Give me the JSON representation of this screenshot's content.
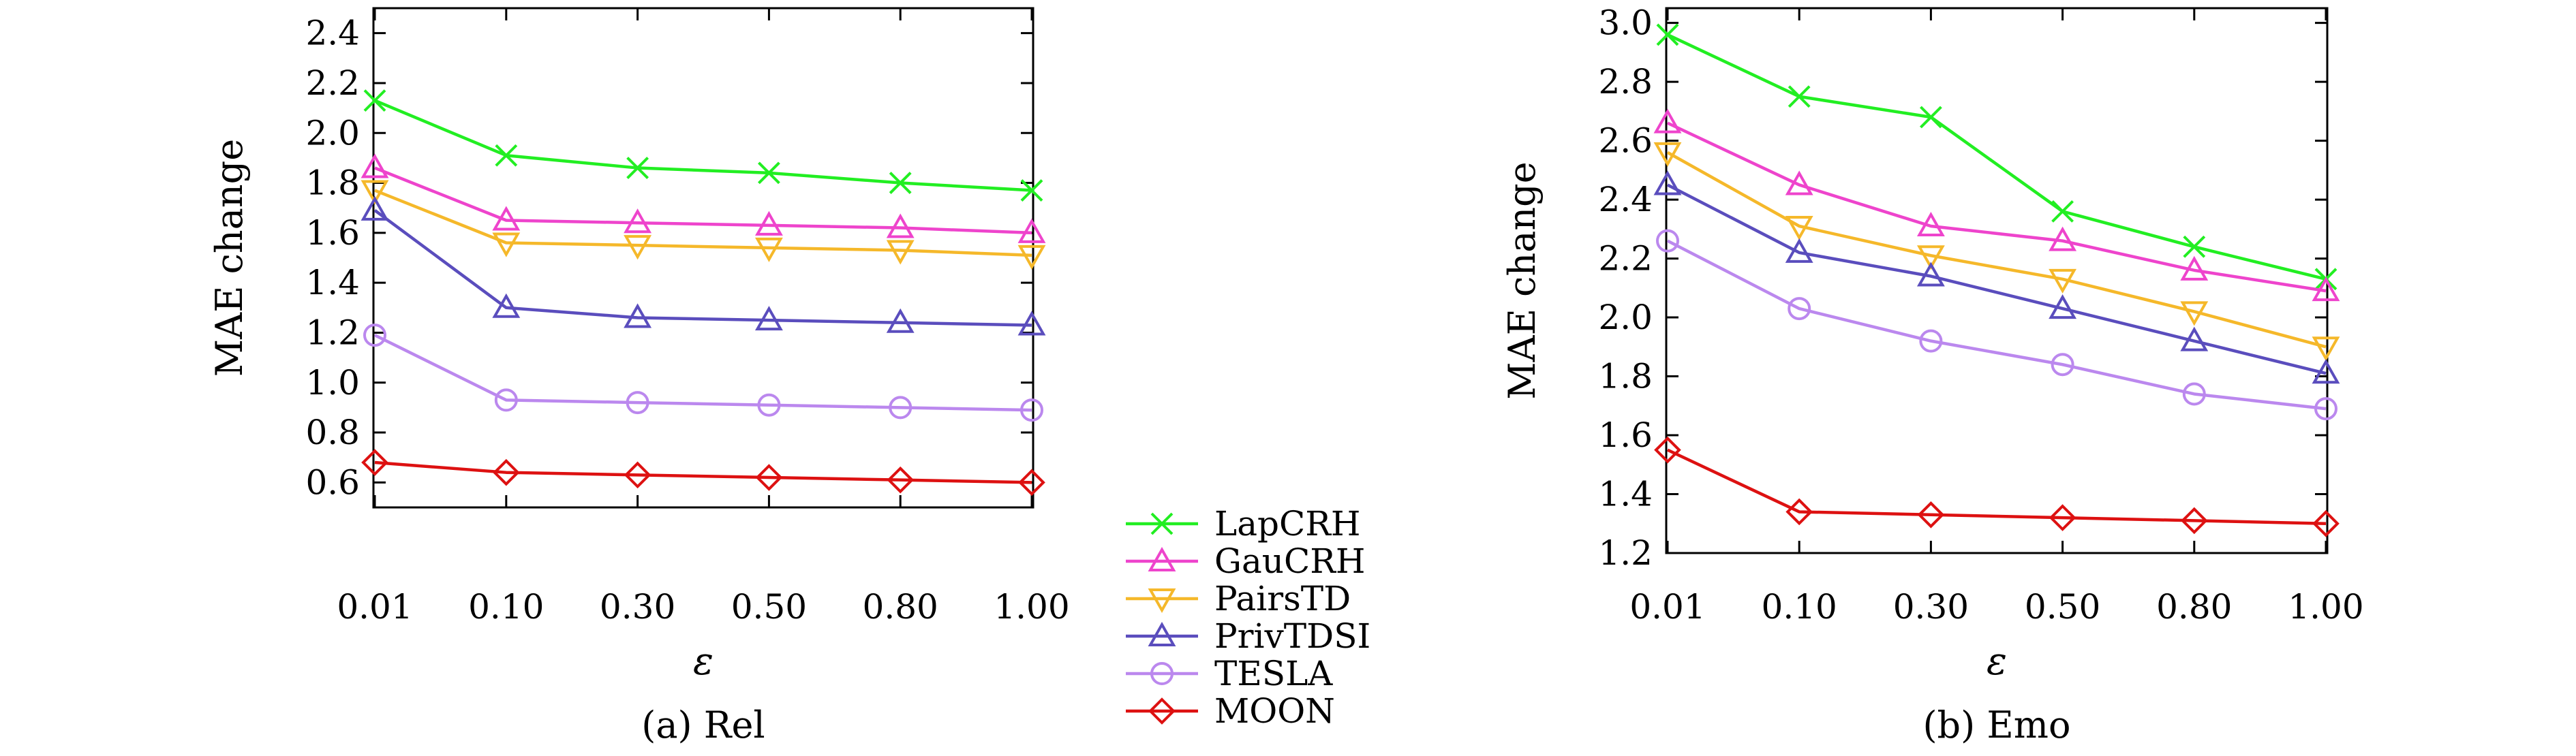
{
  "chart_data": [
    {
      "type": "line",
      "caption": "(a) Rel",
      "xlabel": "ε",
      "ylabel": "MAE change",
      "categories": [
        "0.01",
        "0.10",
        "0.30",
        "0.50",
        "0.80",
        "1.00"
      ],
      "yticks": [
        "0.6",
        "0.8",
        "1.0",
        "1.2",
        "1.4",
        "1.6",
        "1.8",
        "2.0",
        "2.2",
        "2.4"
      ],
      "ylim": [
        0.5,
        2.5
      ],
      "grid": false,
      "series": [
        {
          "name": "LapCRH",
          "values": [
            2.13,
            1.91,
            1.86,
            1.84,
            1.8,
            1.77
          ]
        },
        {
          "name": "GauCRH",
          "values": [
            1.86,
            1.65,
            1.64,
            1.63,
            1.62,
            1.6
          ]
        },
        {
          "name": "PairsTD",
          "values": [
            1.77,
            1.56,
            1.55,
            1.54,
            1.53,
            1.51
          ]
        },
        {
          "name": "PrivTDSI",
          "values": [
            1.69,
            1.3,
            1.26,
            1.25,
            1.24,
            1.23
          ]
        },
        {
          "name": "TESLA",
          "values": [
            1.19,
            0.93,
            0.92,
            0.91,
            0.9,
            0.89
          ]
        },
        {
          "name": "MOON",
          "values": [
            0.68,
            0.64,
            0.63,
            0.62,
            0.61,
            0.6
          ]
        }
      ]
    },
    {
      "type": "line",
      "caption": "(b) Emo",
      "xlabel": "ε",
      "ylabel": "MAE change",
      "categories": [
        "0.01",
        "0.10",
        "0.30",
        "0.50",
        "0.80",
        "1.00"
      ],
      "yticks": [
        "1.2",
        "1.4",
        "1.6",
        "1.8",
        "2.0",
        "2.2",
        "2.4",
        "2.6",
        "2.8",
        "3.0"
      ],
      "ylim": [
        1.2,
        3.05
      ],
      "grid": false,
      "series": [
        {
          "name": "LapCRH",
          "values": [
            2.96,
            2.75,
            2.68,
            2.36,
            2.24,
            2.13
          ]
        },
        {
          "name": "GauCRH",
          "values": [
            2.66,
            2.45,
            2.31,
            2.26,
            2.16,
            2.09
          ]
        },
        {
          "name": "PairsTD",
          "values": [
            2.56,
            2.31,
            2.21,
            2.13,
            2.02,
            1.9
          ]
        },
        {
          "name": "PrivTDSI",
          "values": [
            2.45,
            2.22,
            2.14,
            2.03,
            1.92,
            1.81
          ]
        },
        {
          "name": "TESLA",
          "values": [
            2.26,
            2.03,
            1.92,
            1.84,
            1.74,
            1.69
          ]
        },
        {
          "name": "MOON",
          "values": [
            1.55,
            1.34,
            1.33,
            1.32,
            1.31,
            1.3
          ]
        }
      ]
    }
  ],
  "legend": {
    "placement": "between-panels",
    "entries": [
      {
        "name": "LapCRH",
        "color": "#22ee22",
        "marker": "cross"
      },
      {
        "name": "GauCRH",
        "color": "#ee44cc",
        "marker": "triangle-up"
      },
      {
        "name": "PairsTD",
        "color": "#f5b82a",
        "marker": "triangle-down"
      },
      {
        "name": "PrivTDSI",
        "color": "#5a4dbd",
        "marker": "triangle-up"
      },
      {
        "name": "TESLA",
        "color": "#bb88ee",
        "marker": "circle"
      },
      {
        "name": "MOON",
        "color": "#dd1111",
        "marker": "diamond"
      }
    ]
  }
}
